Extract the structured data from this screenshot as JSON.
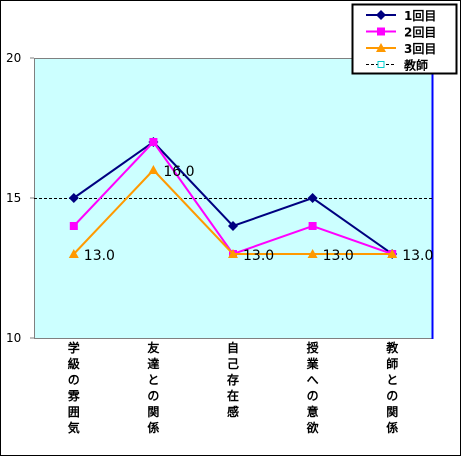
{
  "chart_data": {
    "type": "line",
    "categories": [
      "学級の雰囲気",
      "友達との関係",
      "自己存在感",
      "授業への意欲",
      "教師との関係"
    ],
    "ylim": [
      10,
      20
    ],
    "yticks": [
      10,
      15,
      20
    ],
    "grid": false,
    "plot_background": "#ccffff",
    "legend_position": "top-right",
    "series": [
      {
        "name": "1回目",
        "values": [
          15,
          17,
          14,
          15,
          13
        ],
        "color": "#000080",
        "marker": "diamond"
      },
      {
        "name": "2回目",
        "values": [
          14,
          17,
          13,
          14,
          13
        ],
        "color": "#ff00ff",
        "marker": "square"
      },
      {
        "name": "3回目",
        "values": [
          13,
          16,
          13,
          13,
          13
        ],
        "color": "#ff9900",
        "marker": "triangle"
      }
    ],
    "reference_line": {
      "name": "教師",
      "value": 15,
      "color": "#000000",
      "style": "dashed",
      "marker_color": "#00cccc"
    },
    "data_labels": [
      {
        "series": 2,
        "index": 0,
        "text": "13.0"
      },
      {
        "series": 2,
        "index": 1,
        "text": "16.0"
      },
      {
        "series": 2,
        "index": 2,
        "text": "13.0"
      },
      {
        "series": 2,
        "index": 3,
        "text": "13.0"
      },
      {
        "series": 2,
        "index": 4,
        "text": "13.0"
      }
    ]
  }
}
